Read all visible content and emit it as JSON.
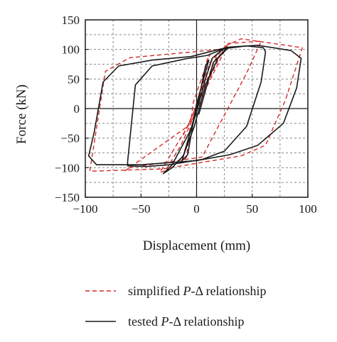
{
  "chart_data": {
    "type": "line",
    "xlabel": "Displacement (mm)",
    "ylabel": "Force (kN)",
    "xlim": [
      -100,
      100
    ],
    "ylim": [
      -150,
      150
    ],
    "x_ticks": [
      -100,
      -50,
      0,
      50,
      100
    ],
    "x_tick_labels": [
      "−100",
      "−50",
      "0",
      "50",
      "100"
    ],
    "y_ticks": [
      -150,
      -100,
      -50,
      0,
      50,
      100,
      150
    ],
    "y_tick_labels": [
      "−150",
      "−100",
      "−50",
      "0",
      "50",
      "100",
      "150"
    ],
    "grid": true,
    "legend_position": "bottom",
    "series": [
      {
        "name": "simplified P-Δ relationship",
        "legend_prefix": "simplified ",
        "legend_italic": "P",
        "legend_suffix": "-Δ relationship",
        "color": "#d42a2a",
        "style": "dashed",
        "loops": [
          [
            [
              2,
              8
            ],
            [
              5,
              35
            ],
            [
              9,
              80
            ],
            [
              12,
              92
            ],
            [
              -3,
              10
            ],
            [
              -6,
              -35
            ],
            [
              -9,
              -82
            ],
            [
              -14,
              -92
            ],
            [
              2,
              8
            ]
          ],
          [
            [
              -3,
              -15
            ],
            [
              12,
              78
            ],
            [
              22,
              98
            ],
            [
              27,
              105
            ],
            [
              10,
              40
            ],
            [
              -14,
              -62
            ],
            [
              -28,
              -105
            ],
            [
              -33,
              -108
            ],
            [
              -3,
              -15
            ]
          ],
          [
            [
              -8,
              -30
            ],
            [
              18,
              88
            ],
            [
              28,
              110
            ],
            [
              58,
              114
            ],
            [
              45,
              60
            ],
            [
              5,
              -82
            ],
            [
              -60,
              -100
            ],
            [
              -64,
              -105
            ],
            [
              -8,
              -30
            ]
          ],
          [
            [
              -12,
              -45
            ],
            [
              25,
              105
            ],
            [
              40,
              118
            ],
            [
              95,
              103
            ],
            [
              80,
              15
            ],
            [
              62,
              -62
            ],
            [
              40,
              -80
            ],
            [
              -30,
              -102
            ],
            [
              -96,
              -106
            ],
            [
              -82,
              63
            ],
            [
              -60,
              86
            ],
            [
              20,
              100
            ]
          ]
        ]
      },
      {
        "name": "tested P-Δ relationship",
        "legend_prefix": "tested ",
        "legend_italic": "P",
        "legend_suffix": "-Δ relationship",
        "color": "#1a1a1a",
        "style": "solid",
        "loops": [
          [
            [
              0,
              0
            ],
            [
              4,
              35
            ],
            [
              8,
              72
            ],
            [
              11,
              82
            ],
            [
              6,
              48
            ],
            [
              0,
              8
            ],
            [
              -4,
              -35
            ],
            [
              -8,
              -78
            ],
            [
              -13,
              -88
            ],
            [
              -8,
              -55
            ],
            [
              0,
              0
            ]
          ],
          [
            [
              0,
              -5
            ],
            [
              8,
              50
            ],
            [
              14,
              85
            ],
            [
              22,
              98
            ],
            [
              28,
              104
            ],
            [
              20,
              88
            ],
            [
              8,
              40
            ],
            [
              -2,
              -30
            ],
            [
              -12,
              -80
            ],
            [
              -22,
              -100
            ],
            [
              -30,
              -110
            ],
            [
              -22,
              -95
            ],
            [
              -5,
              -35
            ],
            [
              0,
              -5
            ]
          ],
          [
            [
              2,
              -10
            ],
            [
              15,
              78
            ],
            [
              28,
              102
            ],
            [
              45,
              106
            ],
            [
              60,
              103
            ],
            [
              62,
              96
            ],
            [
              58,
              45
            ],
            [
              45,
              -30
            ],
            [
              25,
              -72
            ],
            [
              5,
              -86
            ],
            [
              -25,
              -95
            ],
            [
              -45,
              -98
            ],
            [
              -62,
              -97
            ],
            [
              -62,
              -90
            ],
            [
              -55,
              40
            ],
            [
              -40,
              72
            ],
            [
              -10,
              84
            ],
            [
              10,
              90
            ],
            [
              28,
              104
            ]
          ],
          [
            [
              30,
              104
            ],
            [
              55,
              107
            ],
            [
              85,
              98
            ],
            [
              94,
              85
            ],
            [
              90,
              35
            ],
            [
              78,
              -25
            ],
            [
              55,
              -62
            ],
            [
              30,
              -78
            ],
            [
              0,
              -88
            ],
            [
              -50,
              -95
            ],
            [
              -90,
              -95
            ],
            [
              -97,
              -80
            ],
            [
              -92,
              -40
            ],
            [
              -84,
              45
            ],
            [
              -70,
              72
            ],
            [
              -40,
              82
            ],
            [
              -5,
              88
            ],
            [
              20,
              100
            ],
            [
              30,
              104
            ]
          ]
        ]
      }
    ]
  }
}
